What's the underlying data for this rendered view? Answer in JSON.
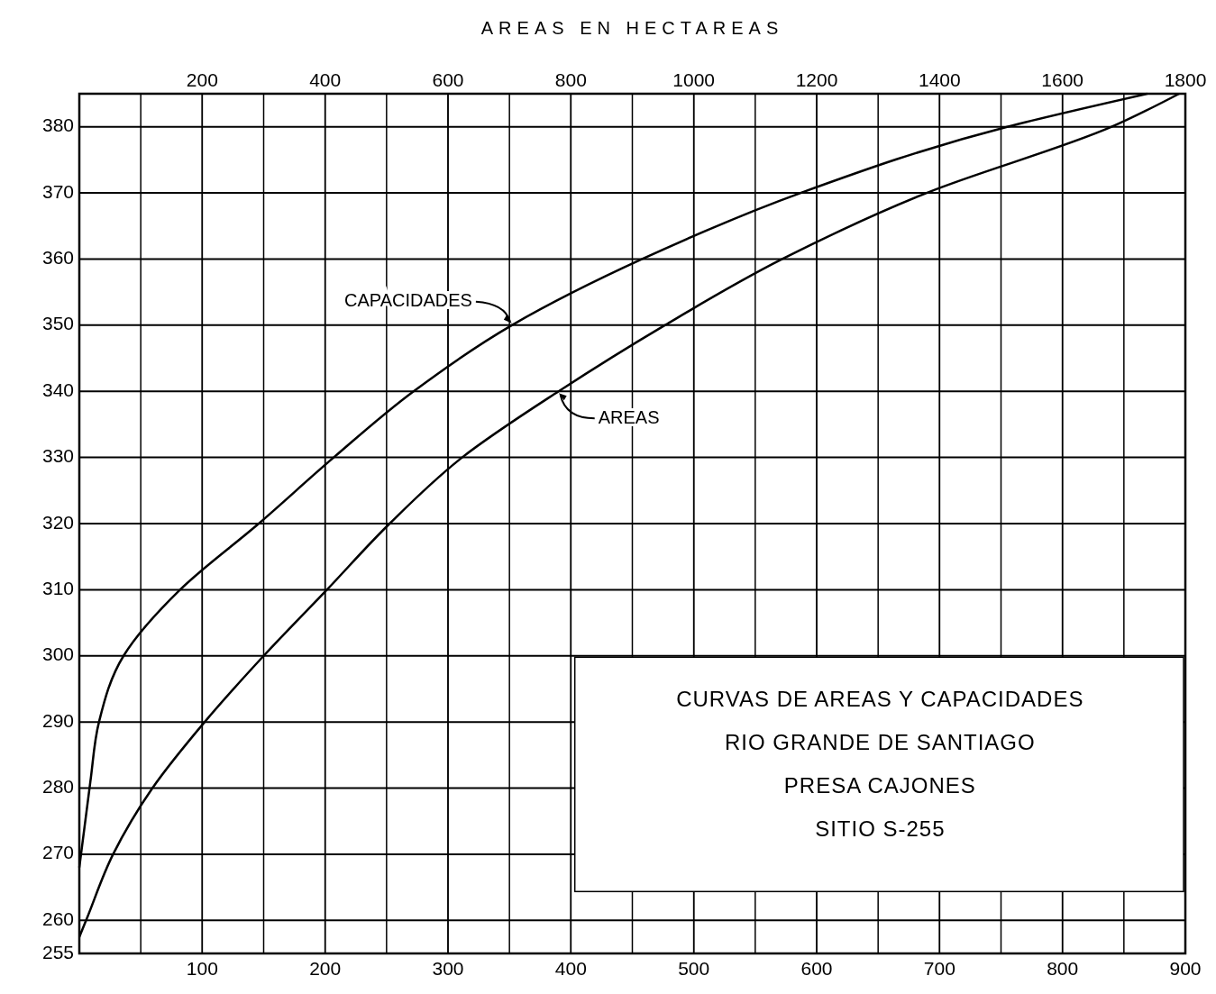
{
  "chart_data": {
    "type": "line",
    "title": "CURVAS DE AREAS Y CAPACIDADES",
    "subtitle": "RIO GRANDE DE SANTIAGO",
    "x2label": "AREAS EN HECTAREAS",
    "annotations": [
      "PRESA CAJONES",
      "SITIO S-255"
    ],
    "xlim": [
      0,
      900
    ],
    "xticks": [
      {
        "value": 50,
        "label": null
      },
      100,
      {
        "value": 150,
        "label": null
      },
      200,
      {
        "value": 250,
        "label": null
      },
      300,
      {
        "value": 350,
        "label": null
      },
      400,
      {
        "value": 450,
        "label": null
      },
      500,
      {
        "value": 550,
        "label": null
      },
      600,
      {
        "value": 650,
        "label": null
      },
      700,
      {
        "value": 750,
        "label": null
      },
      800,
      {
        "value": 850,
        "label": null
      },
      900
    ],
    "x2lim": [
      0,
      1800
    ],
    "x2ticks": [
      200,
      400,
      600,
      800,
      1000,
      1200,
      1400,
      1600,
      1800
    ],
    "ylim": [
      255,
      385
    ],
    "yticks": [
      255,
      260,
      270,
      280,
      290,
      300,
      310,
      320,
      330,
      340,
      350,
      360,
      370,
      380
    ],
    "grid": true,
    "marker": "none",
    "line_style": "solid",
    "series": [
      {
        "name": "CAPACIDADES",
        "color": "#000000",
        "x": [
          0,
          9,
          16,
          36,
          82,
          146,
          207,
          272,
          352,
          458,
          587,
          755,
          869
        ],
        "values": [
          268,
          281,
          290,
          300,
          310,
          320,
          330,
          340,
          350,
          360,
          370,
          380,
          385
        ]
      },
      {
        "name": "AREAS",
        "axis": "x2",
        "color": "#000000",
        "x": [
          0,
          11,
          55,
          119,
          204,
          300,
          403,
          505,
          623,
          780,
          953,
          1144,
          1379,
          1680,
          1790
        ],
        "values": [
          257.5,
          260,
          270,
          280,
          290,
          300,
          310,
          320,
          330,
          340,
          350,
          360,
          370,
          380,
          385
        ]
      }
    ]
  }
}
